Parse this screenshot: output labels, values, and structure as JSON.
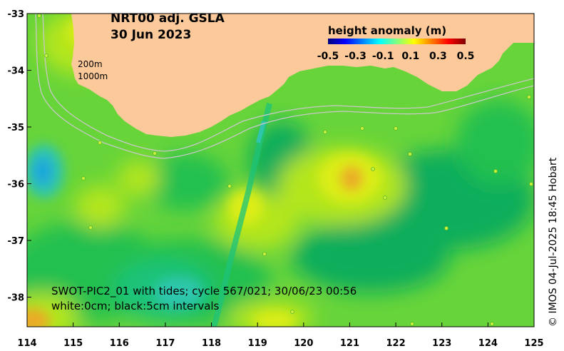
{
  "title": {
    "line1": "NRT00 adj. GSLA",
    "line2": "30 Jun 2023"
  },
  "isobaths": {
    "shallow": "200m",
    "deep": "1000m"
  },
  "legend": {
    "title": "height anomaly (m)",
    "ticks": [
      "-0.5",
      "-0.3",
      "-0.1",
      "0.1",
      "0.3",
      "0.5"
    ],
    "colors": [
      "#00007f",
      "#0000ff",
      "#0080ff",
      "#00ffff",
      "#80ff80",
      "#ffff00",
      "#ff8000",
      "#ff0000",
      "#7f0000"
    ]
  },
  "caption": {
    "line1": "SWOT-PIC2_01 with tides; cycle 567/021; 30/06/23 00:56",
    "line2": "white:0cm; black:5cm intervals"
  },
  "credit": "© IMOS 04-Jul-2025 18:45 Hobart",
  "axes": {
    "x_ticks": [
      "114",
      "115",
      "116",
      "117",
      "118",
      "119",
      "120",
      "121",
      "122",
      "123",
      "124",
      "125"
    ],
    "y_ticks": [
      "-33",
      "-34",
      "-35",
      "-36",
      "-37",
      "-38"
    ]
  },
  "colors": {
    "land": "#fbc99a",
    "sea_base": "#67d43a",
    "green_mid": "#22c050",
    "green_dark": "#10ad5c",
    "teal": "#1ec37a",
    "cyan": "#2fc6ad",
    "blue": "#1aa6dc",
    "yellow_green": "#b4e61e",
    "yellow": "#dced14",
    "orange": "#ebaa28",
    "isobath": "#c8c8c8"
  }
}
